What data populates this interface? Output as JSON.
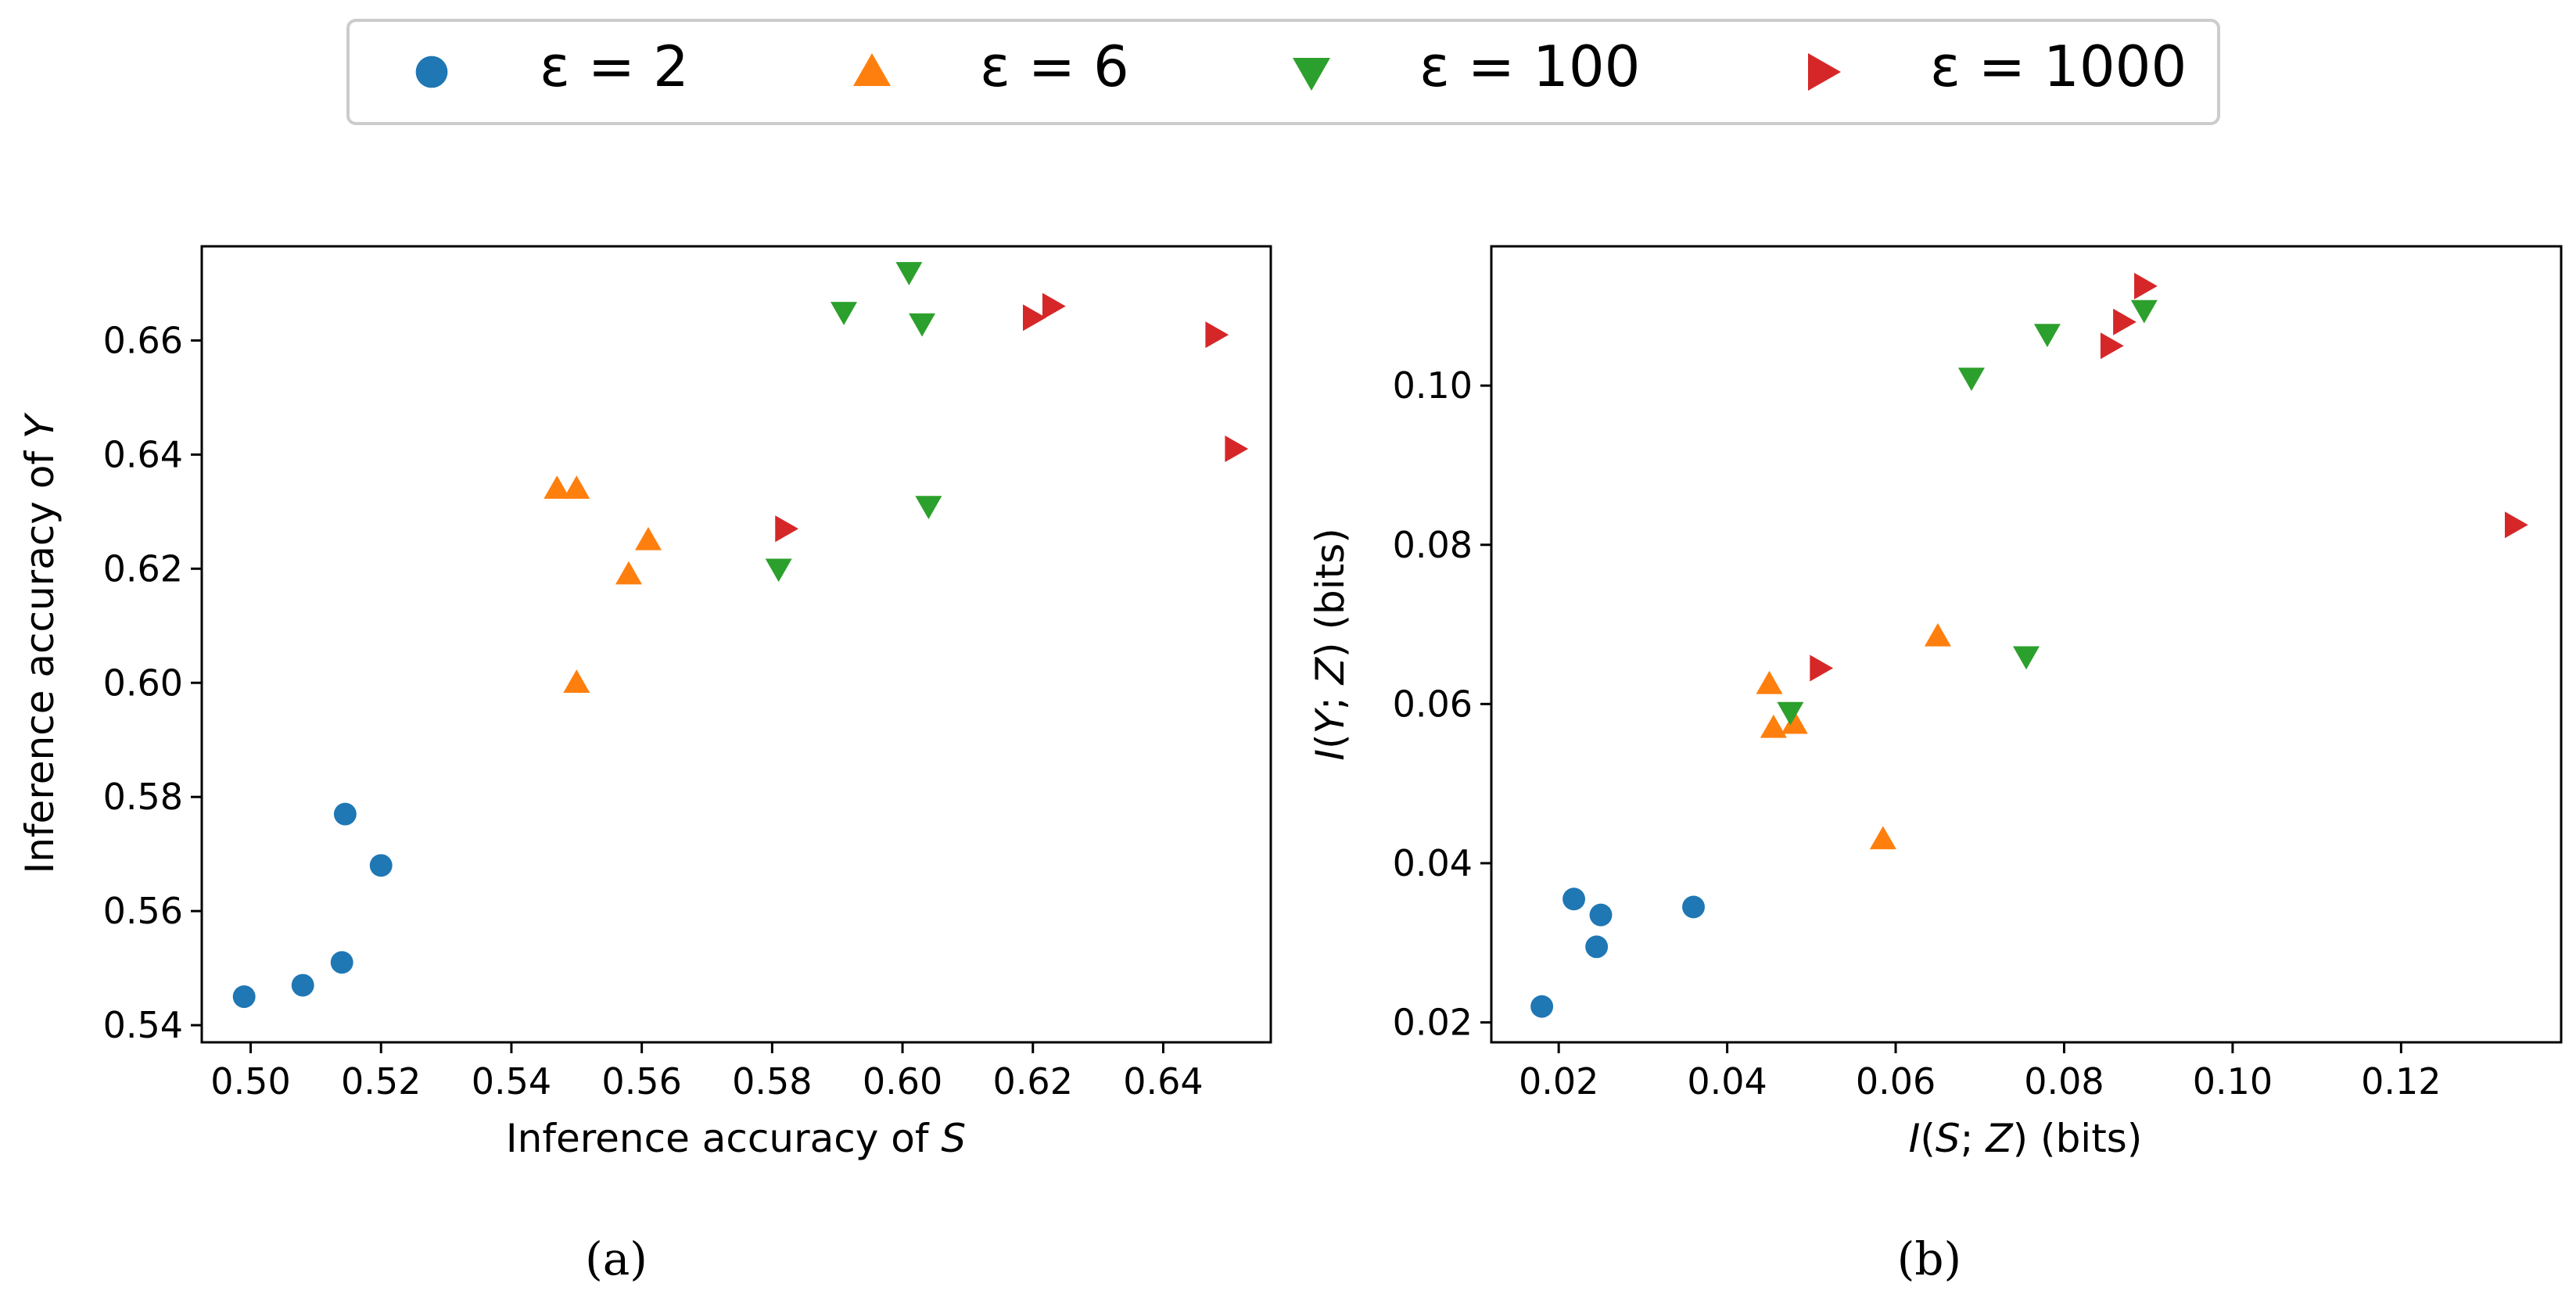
{
  "colors": {
    "eps2": "#1f77b4",
    "eps6": "#ff7f0e",
    "eps100": "#2ca02c",
    "eps1000": "#d62728"
  },
  "legend": {
    "items": [
      {
        "label": "ε = 2",
        "marker": "circle",
        "color": "#1f77b4"
      },
      {
        "label": "ε = 6",
        "marker": "triangle-up",
        "color": "#ff7f0e"
      },
      {
        "label": "ε = 100",
        "marker": "triangle-down",
        "color": "#2ca02c"
      },
      {
        "label": "ε = 1000",
        "marker": "triangle-right",
        "color": "#d62728"
      }
    ]
  },
  "chart_data": [
    {
      "type": "scatter",
      "panel_label": "(a)",
      "xlabel": "Inference accuracy of S",
      "ylabel": "Inference accuracy of Y",
      "xlim": [
        0.4925,
        0.6565
      ],
      "ylim": [
        0.537,
        0.6765
      ],
      "xticks": [
        "0.50",
        "0.52",
        "0.54",
        "0.56",
        "0.58",
        "0.60",
        "0.62",
        "0.64"
      ],
      "yticks": [
        "0.54",
        "0.56",
        "0.58",
        "0.60",
        "0.62",
        "0.64",
        "0.66"
      ],
      "series": [
        {
          "name": "ε = 2",
          "marker": "circle",
          "color": "#1f77b4",
          "x": [
            0.499,
            0.508,
            0.514,
            0.5145,
            0.52
          ],
          "y": [
            0.545,
            0.547,
            0.551,
            0.577,
            0.568
          ]
        },
        {
          "name": "ε = 6",
          "marker": "triangle-up",
          "color": "#ff7f0e",
          "x": [
            0.547,
            0.55,
            0.55,
            0.558,
            0.561
          ],
          "y": [
            0.634,
            0.634,
            0.6,
            0.619,
            0.625
          ]
        },
        {
          "name": "ε = 100",
          "marker": "triangle-down",
          "color": "#2ca02c",
          "x": [
            0.581,
            0.591,
            0.601,
            0.603,
            0.604
          ],
          "y": [
            0.62,
            0.665,
            0.672,
            0.663,
            0.631
          ]
        },
        {
          "name": "ε = 1000",
          "marker": "triangle-right",
          "color": "#d62728",
          "x": [
            0.582,
            0.62,
            0.623,
            0.648,
            0.651
          ],
          "y": [
            0.627,
            0.664,
            0.666,
            0.661,
            0.641
          ]
        }
      ]
    },
    {
      "type": "scatter",
      "panel_label": "(b)",
      "xlabel": "I(S; Z) (bits)",
      "ylabel": "I(Y; Z) (bits)",
      "xlim": [
        0.012,
        0.139
      ],
      "ylim": [
        0.0175,
        0.1175
      ],
      "xticks": [
        "0.02",
        "0.04",
        "0.06",
        "0.08",
        "0.10",
        "0.12"
      ],
      "yticks": [
        "0.02",
        "0.04",
        "0.06",
        "0.08",
        "0.10"
      ],
      "series": [
        {
          "name": "ε = 2",
          "marker": "circle",
          "color": "#1f77b4",
          "x": [
            0.018,
            0.0218,
            0.0245,
            0.025,
            0.036
          ],
          "y": [
            0.022,
            0.0355,
            0.0295,
            0.0335,
            0.0345
          ]
        },
        {
          "name": "ε = 6",
          "marker": "triangle-up",
          "color": "#ff7f0e",
          "x": [
            0.045,
            0.0455,
            0.048,
            0.0585,
            0.065
          ],
          "y": [
            0.0625,
            0.057,
            0.0575,
            0.043,
            0.0685
          ]
        },
        {
          "name": "ε = 100",
          "marker": "triangle-down",
          "color": "#2ca02c",
          "x": [
            0.0475,
            0.069,
            0.0755,
            0.078,
            0.0895
          ],
          "y": [
            0.059,
            0.101,
            0.066,
            0.1065,
            0.1095
          ]
        },
        {
          "name": "ε = 1000",
          "marker": "triangle-right",
          "color": "#d62728",
          "x": [
            0.051,
            0.0855,
            0.087,
            0.0895,
            0.1335
          ],
          "y": [
            0.0645,
            0.105,
            0.108,
            0.1125,
            0.0825
          ]
        }
      ]
    }
  ]
}
